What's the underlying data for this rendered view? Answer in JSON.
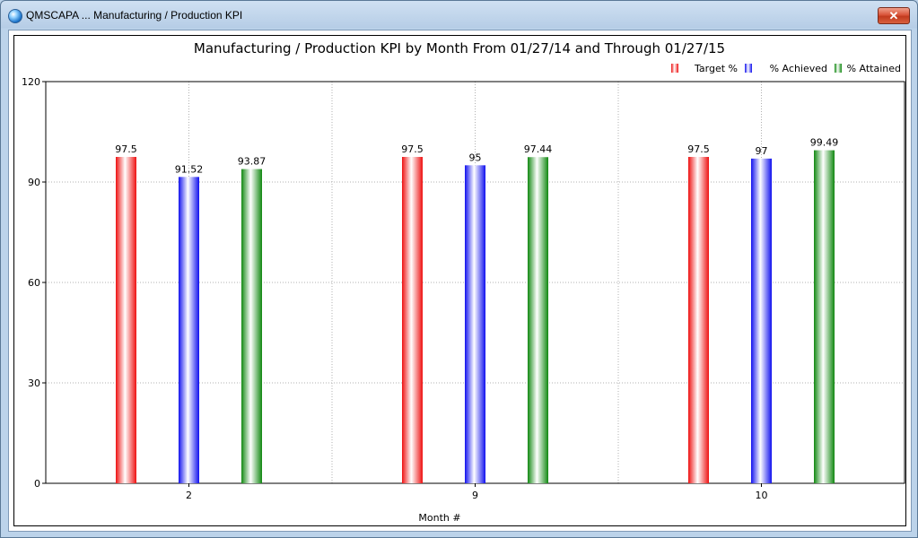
{
  "window": {
    "title": "QMSCAPA ... Manufacturing / Production KPI",
    "close_glyph": "✕",
    "icon": "app-globe-icon"
  },
  "chart_data": {
    "type": "bar",
    "title": "Manufacturing / Production KPI by Month From 01/27/14 and Through 01/27/15",
    "xlabel": "Month #",
    "ylabel": "",
    "ylim": [
      0,
      120
    ],
    "yticks": [
      0,
      30,
      60,
      90,
      120
    ],
    "grid": true,
    "legend_position": "top-right",
    "categories": [
      "2",
      "9",
      "10"
    ],
    "series": [
      {
        "name": "Target %",
        "color": "#ee1111",
        "values": [
          97.5,
          97.5,
          97.5
        ],
        "labels": [
          "97.5",
          "97.5",
          "97.5"
        ]
      },
      {
        "name": "% Achieved",
        "color": "#1111ee",
        "values": [
          91.52,
          95,
          97
        ],
        "labels": [
          "91.52",
          "95",
          "97"
        ]
      },
      {
        "name": "% Attained",
        "color": "#118811",
        "values": [
          93.87,
          97.44,
          99.49
        ],
        "labels": [
          "93.87",
          "97.44",
          "99.49"
        ]
      }
    ]
  }
}
